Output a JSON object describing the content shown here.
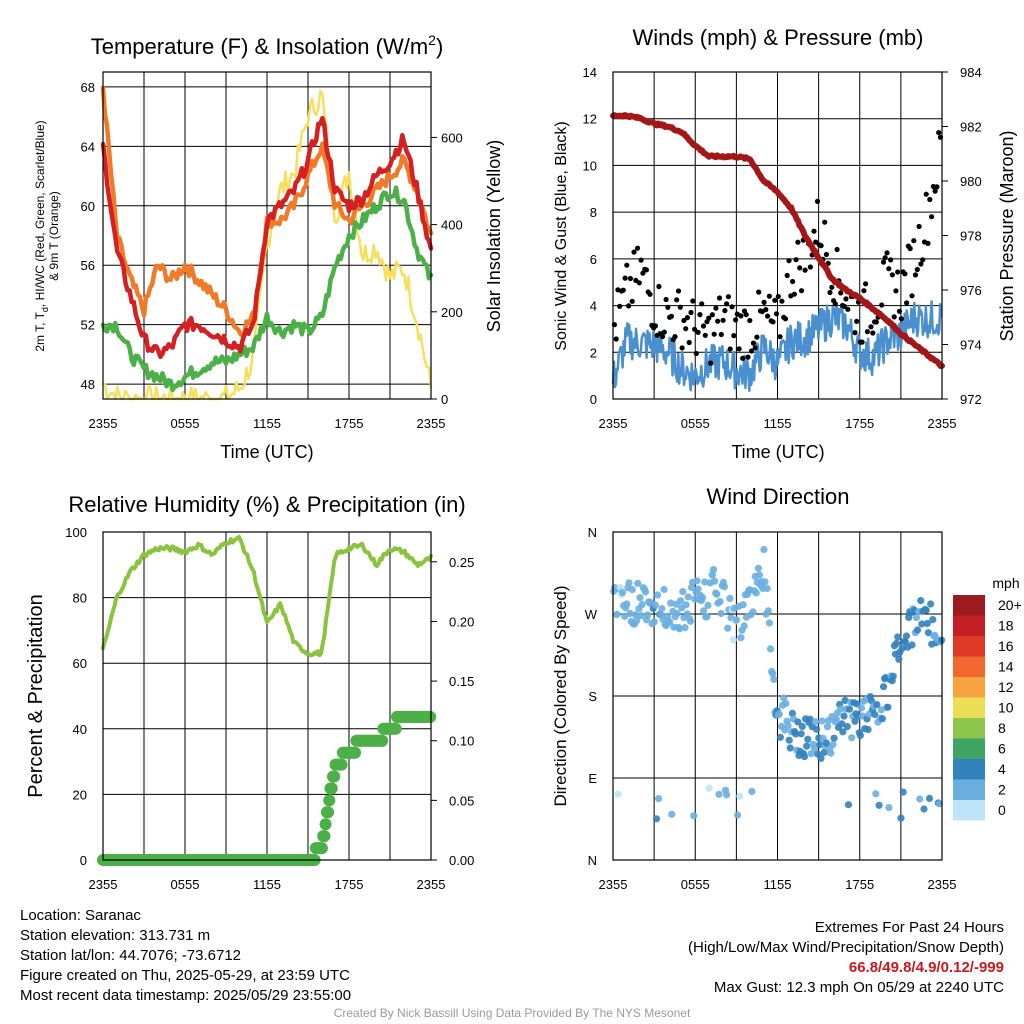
{
  "colors": {
    "red": "#d42020",
    "orange": "#f07a28",
    "green": "#4cb048",
    "yellow": "#f7df5c",
    "blue": "#4a90cf",
    "black": "#000000",
    "maroon": "#a41717",
    "rh_line": "#8ac43f",
    "precip": "#4cb048"
  },
  "time_ticks": [
    "2355",
    "0555",
    "1155",
    "1755",
    "2355"
  ],
  "charts": [
    {
      "id": "temp",
      "title": "Temperature (F) & Insolation (W/m²)",
      "xlabel": "Time (UTC)",
      "ylabel_left": [
        "2m T, T",
        "d",
        ", HI/WC (Red, Green, Scarlet/Blue)",
        "& 9m T (Orange)"
      ],
      "ylabel_right": "Solar Insolation (Yellow)",
      "yticks_left": [
        "48",
        "52",
        "56",
        "60",
        "64",
        "68"
      ],
      "yticks_right": [
        "0",
        "200",
        "400",
        "600"
      ]
    },
    {
      "id": "wind",
      "title": "Winds (mph) & Pressure (mb)",
      "xlabel": "Time (UTC)",
      "ylabel_left": "Sonic Wind & Gust (Blue, Black)",
      "ylabel_right": "Station Pressure (Maroon)",
      "yticks_left": [
        "0",
        "2",
        "4",
        "6",
        "8",
        "10",
        "12",
        "14"
      ],
      "yticks_right": [
        "972",
        "974",
        "976",
        "978",
        "980",
        "982",
        "984"
      ]
    },
    {
      "id": "rh",
      "title": "Relative Humidity (%) & Precipitation (in)",
      "ylabel_left": "Percent & Precipitation",
      "yticks_left": [
        "0",
        "20",
        "40",
        "60",
        "80",
        "100"
      ],
      "yticks_right": [
        "0.00",
        "0.05",
        "0.10",
        "0.15",
        "0.20",
        "0.25"
      ]
    },
    {
      "id": "dir",
      "title": "Wind Direction",
      "ylabel_left": "Direction (Colored By Speed)",
      "yticks_left": [
        "N",
        "E",
        "S",
        "W",
        "N"
      ]
    }
  ],
  "chart_data": [
    {
      "type": "line",
      "title": "Temperature (F) & Insolation (W/m²)",
      "xlabel": "Time (UTC)",
      "x": [
        0,
        1,
        2,
        3,
        4,
        5,
        6,
        7,
        8,
        9,
        10,
        11,
        12,
        13,
        14,
        15,
        16,
        17,
        18,
        19,
        20,
        21,
        22,
        23,
        24
      ],
      "ylim": [
        47,
        69
      ],
      "y2lim": [
        0,
        750
      ],
      "series": [
        {
          "key": "temp_red",
          "axis": "left",
          "values": [
            64,
            57,
            54,
            51,
            50,
            50.5,
            52,
            52,
            51.5,
            51,
            50.5,
            52,
            59,
            60,
            61,
            63,
            66,
            61,
            60,
            60.5,
            62,
            63,
            64.5,
            61,
            57
          ]
        },
        {
          "key": "temp_orange",
          "axis": "left",
          "values": [
            68,
            58,
            55,
            53,
            56,
            55,
            56,
            55,
            54,
            53,
            51.5,
            52.5,
            59,
            59,
            60,
            62,
            64,
            60,
            59,
            60,
            61,
            62,
            63,
            61,
            58
          ]
        },
        {
          "key": "dewpoint_green",
          "axis": "left",
          "values": [
            52,
            52,
            50,
            49,
            48.5,
            48,
            48.5,
            49,
            49.5,
            49.5,
            50,
            50.5,
            52.5,
            51.5,
            52,
            51.5,
            52.5,
            56,
            58,
            59,
            60,
            61,
            60.5,
            57,
            55
          ]
        },
        {
          "key": "insolation_yellow",
          "axis": "right",
          "values": [
            35,
            5,
            0,
            0,
            0,
            0,
            0,
            0,
            0,
            2,
            25,
            90,
            360,
            480,
            520,
            650,
            700,
            420,
            520,
            330,
            350,
            280,
            300,
            180,
            25
          ]
        }
      ]
    },
    {
      "type": "line",
      "title": "Winds (mph) & Pressure (mb)",
      "xlabel": "Time (UTC)",
      "x": [
        0,
        1,
        2,
        3,
        4,
        5,
        6,
        7,
        8,
        9,
        10,
        11,
        12,
        13,
        14,
        15,
        16,
        17,
        18,
        19,
        20,
        21,
        22,
        23,
        24
      ],
      "ylim": [
        0,
        14
      ],
      "y2lim": [
        972,
        984
      ],
      "series": [
        {
          "key": "wind_blue",
          "axis": "left",
          "values": [
            0.8,
            2.5,
            2.4,
            2.3,
            2.0,
            1.3,
            1.0,
            1.5,
            1.6,
            1.2,
            1.1,
            2.2,
            1.5,
            2.5,
            2.6,
            3.0,
            3.5,
            3.2,
            2.0,
            1.8,
            2.5,
            2.8,
            3.5,
            3.4,
            3.5
          ]
        },
        {
          "key": "gust_black",
          "axis": "left",
          "values": [
            3.0,
            4.5,
            5.5,
            4.0,
            3.5,
            3.5,
            3.0,
            2.7,
            3.5,
            3.0,
            3.0,
            3.5,
            3.0,
            5.5,
            6.0,
            7.5,
            5.5,
            4.5,
            3.5,
            4.0,
            5.0,
            4.5,
            6.0,
            8.0,
            11.0
          ]
        },
        {
          "key": "pressure_maroon",
          "axis": "right",
          "values": [
            982.4,
            982.4,
            982.3,
            982.1,
            982.0,
            981.8,
            981.3,
            980.9,
            980.9,
            980.9,
            980.8,
            980.0,
            979.6,
            979.0,
            978.0,
            977.2,
            976.4,
            976.0,
            975.7,
            975.3,
            974.9,
            974.4,
            974.0,
            973.6,
            973.2
          ]
        }
      ]
    },
    {
      "type": "line",
      "title": "Relative Humidity (%) & Precipitation (in)",
      "x": [
        0,
        1,
        2,
        3,
        4,
        5,
        6,
        7,
        8,
        9,
        10,
        11,
        12,
        13,
        14,
        15,
        16,
        17,
        18,
        19,
        20,
        21,
        22,
        23,
        24
      ],
      "ylim": [
        0,
        100
      ],
      "y2lim": [
        0,
        0.275
      ],
      "series": [
        {
          "key": "rh_line",
          "axis": "left",
          "values": [
            64,
            80,
            88,
            93,
            95,
            95,
            94,
            96,
            93,
            97,
            98,
            88,
            72,
            78,
            66,
            63,
            63,
            93,
            95,
            96,
            90,
            95,
            94,
            90,
            92
          ]
        },
        {
          "key": "precip_dots",
          "axis": "right",
          "values": [
            0,
            0,
            0,
            0,
            0,
            0,
            0,
            0,
            0,
            0,
            0,
            0,
            0,
            0,
            0,
            0,
            0.01,
            0.08,
            0.09,
            0.1,
            0.1,
            0.11,
            0.12,
            0.12,
            0.12
          ]
        }
      ]
    },
    {
      "type": "scatter",
      "title": "Wind Direction",
      "x": [
        0.5,
        1,
        1.5,
        2,
        2.5,
        3,
        4,
        5,
        6,
        7,
        7.5,
        8,
        9,
        10,
        11,
        12,
        12.5,
        13,
        14,
        15,
        16,
        17,
        18,
        19,
        20,
        21,
        22,
        23,
        23.5,
        24
      ],
      "ylim": [
        0,
        360
      ],
      "y_values": [
        290,
        285,
        280,
        285,
        285,
        280,
        278,
        275,
        285,
        285,
        310,
        285,
        250,
        285,
        320,
        150,
        160,
        140,
        135,
        130,
        140,
        160,
        150,
        170,
        180,
        250,
        260,
        265,
        250,
        230
      ],
      "speeds": [
        1,
        2,
        2,
        2,
        2,
        3,
        2,
        2,
        2,
        1,
        2,
        2,
        1,
        2,
        1,
        3,
        2,
        3,
        4,
        3,
        3,
        3,
        3,
        3,
        3,
        4,
        3,
        4,
        3,
        3
      ],
      "legend_title": "mph",
      "legend": [
        {
          "label": "20+",
          "color": "#9b1b1f"
        },
        {
          "label": "18",
          "color": "#c31f25"
        },
        {
          "label": "16",
          "color": "#e03a26"
        },
        {
          "label": "14",
          "color": "#f2672e"
        },
        {
          "label": "12",
          "color": "#f6a340"
        },
        {
          "label": "10",
          "color": "#ecdd56"
        },
        {
          "label": "8",
          "color": "#8dc64a"
        },
        {
          "label": "6",
          "color": "#3fa363"
        },
        {
          "label": "4",
          "color": "#3182bd"
        },
        {
          "label": "2",
          "color": "#6aaee0"
        },
        {
          "label": "0",
          "color": "#bfe3f7"
        }
      ]
    }
  ],
  "footer": {
    "left": [
      "Location: Saranac",
      "Station elevation: 313.731 m",
      "Station lat/lon: 44.7076; -73.6712",
      "Figure created on Thu, 2025-05-29, at 23:59 UTC",
      "Most recent data timestamp: 2025/05/29 23:55:00"
    ],
    "extremes_title": "Extremes For Past 24 Hours",
    "extremes_subtitle": "(High/Low/Max Wind/Precipitation/Snow Depth)",
    "extremes_values": "66.8/49.8/4.9/0.12/-999",
    "max_gust": "Max Gust: 12.3 mph On 05/29 at 2240 UTC",
    "credit": "Created By Nick Bassill Using Data Provided By The NYS Mesonet"
  }
}
